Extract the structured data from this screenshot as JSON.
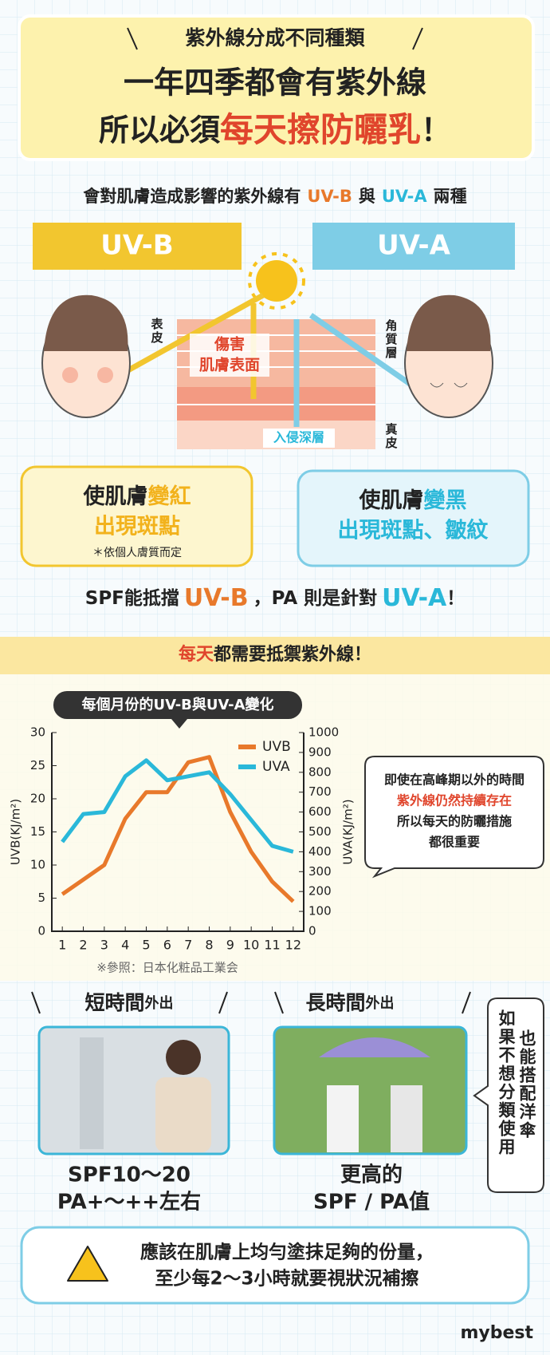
{
  "header": {
    "line1": "紫外線分成不同種類",
    "line2": "一年四季都會有紫外線",
    "line3": [
      "所以必須",
      "每天擦防曬乳",
      "！"
    ]
  },
  "intro": [
    "會對肌膚造成影響的紫外線有",
    "UV-B",
    "與",
    "UV-A",
    "兩種"
  ],
  "types": [
    {
      "label": "UV-B",
      "effect": [
        "使肌膚",
        "變紅"
      ],
      "effect2": "出現斑點",
      "note": "＊依個人膚質而定"
    },
    {
      "label": "UV-A",
      "effect": [
        "使肌膚",
        "變黑"
      ],
      "effect2": "出現斑點、皺紋"
    }
  ],
  "skin": {
    "epidermis": "表皮",
    "stratum": "角質層",
    "dermis": "真皮",
    "uvb_effect": [
      "傷害",
      "肌膚表面"
    ],
    "uva_effect": "入侵深層"
  },
  "spf_line": [
    "SPF能抵擋",
    "UV-B",
    "，PA 則是針對",
    "UV-A",
    "！"
  ],
  "section": [
    "每天",
    "都需要抵禦紫外線！"
  ],
  "chart_data": {
    "type": "line",
    "title": "每個月份的UV-B與UV-A變化",
    "ylabel": "UVB(KJ/m²)",
    "y2label": "UVA(KJ/m²)",
    "x": [
      1,
      2,
      3,
      4,
      5,
      6,
      7,
      8,
      9,
      10,
      11,
      12
    ],
    "xlim": [
      0.5,
      12.5
    ],
    "xticks": [
      1,
      2,
      3,
      4,
      5,
      6,
      7,
      8,
      9,
      10,
      11,
      12
    ],
    "ylim": [
      0,
      30
    ],
    "yticks": [
      0,
      5,
      10,
      15,
      20,
      25,
      30
    ],
    "y2lim": [
      0,
      1000
    ],
    "y2ticks": [
      0,
      100,
      200,
      300,
      400,
      500,
      600,
      700,
      800,
      900,
      1000
    ],
    "legend": "upper right",
    "series": [
      {
        "name": "UVB",
        "color": "#e8792b",
        "values": [
          5.6,
          7.8,
          10,
          17,
          21,
          21,
          25.5,
          26.3,
          18,
          12,
          7.5,
          4.5
        ]
      },
      {
        "name": "UVA",
        "color": "#2ab8d9",
        "axis": "y2",
        "values": [
          450,
          590,
          600,
          780,
          860,
          760,
          780,
          800,
          690,
          560,
          430,
          400
        ]
      }
    ],
    "note": "※參照：日本化粧品工業会"
  },
  "callout": [
    "即使在高峰期以外的時間",
    "紫外線仍然持續存在",
    "所以每天的防曬措施",
    "都很重要"
  ],
  "usage": [
    {
      "title": "短時間",
      "suffix": "外出",
      "lines": [
        "SPF10～20",
        "PA+～++左右"
      ]
    },
    {
      "title": "長時間",
      "suffix": "外出",
      "lines": [
        "更高的",
        "SPF / PA值"
      ]
    }
  ],
  "side_note": [
    "如果不想分類使用",
    "也能搭配洋傘"
  ],
  "warning": [
    "應該在肌膚上均勻塗抹足夠的份量，",
    "至少每2～3小時就要視狀況補擦"
  ],
  "logo": "mybest"
}
